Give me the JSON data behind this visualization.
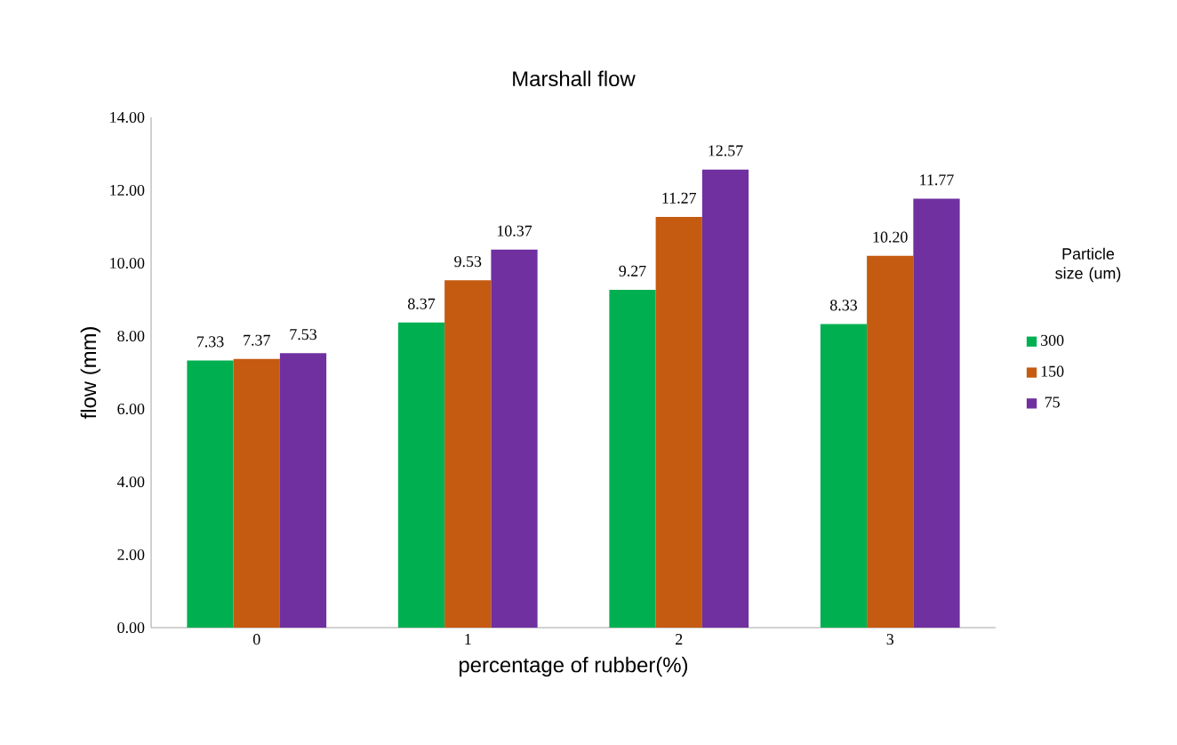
{
  "chart_data": {
    "type": "bar",
    "title": "Marshall flow",
    "xlabel": "percentage of rubber(%)",
    "ylabel": "flow (mm)",
    "legend_title": "Particle size (um)",
    "categories": [
      "0",
      "1",
      "2",
      "3"
    ],
    "series": [
      {
        "name": "300",
        "color": "#00b050",
        "values": [
          7.33,
          8.37,
          9.27,
          8.33
        ],
        "value_labels": [
          "7.33",
          "8.37",
          "9.27",
          "8.33"
        ]
      },
      {
        "name": "150",
        "color": "#c55a11",
        "values": [
          7.37,
          9.53,
          11.27,
          10.2
        ],
        "value_labels": [
          "7.37",
          "9.53",
          "11.27",
          "10.20"
        ]
      },
      {
        "name": "75",
        "color": "#7030a0",
        "values": [
          7.53,
          10.37,
          12.57,
          11.77
        ],
        "value_labels": [
          "7.53",
          "10.37",
          "12.57",
          "11.77"
        ]
      }
    ],
    "ylim": [
      0,
      14
    ],
    "yticks": [
      {
        "value": 0,
        "label": "0.00"
      },
      {
        "value": 2,
        "label": "2.00"
      },
      {
        "value": 4,
        "label": "4.00"
      },
      {
        "value": 6,
        "label": "6.00"
      },
      {
        "value": 8,
        "label": "8.00"
      },
      {
        "value": 10,
        "label": "10.00"
      },
      {
        "value": 12,
        "label": "12.00"
      },
      {
        "value": 14,
        "label": "14.00"
      }
    ],
    "legend": "right",
    "grid": false
  }
}
